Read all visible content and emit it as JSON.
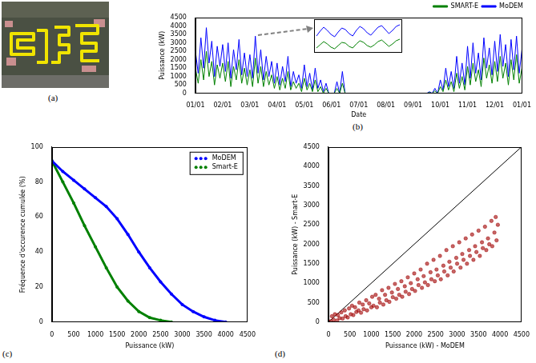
{
  "image_panel": {
    "label": "(a)"
  },
  "chart_data": [
    {
      "panel": "(b)",
      "type": "line",
      "xlabel": "Date",
      "ylabel": "Puissance (kW)",
      "categories": [
        "01/01",
        null,
        null,
        null,
        null,
        null,
        null,
        null,
        null,
        null,
        "02/01",
        null,
        null,
        null,
        null,
        null,
        null,
        null,
        null,
        null,
        "03/01",
        null,
        null,
        null,
        null,
        null,
        null,
        null,
        null,
        null,
        "04/01",
        null,
        null,
        null,
        null,
        null,
        null,
        null,
        null,
        null,
        "05/01",
        null,
        null,
        null,
        null,
        null,
        null,
        null,
        null,
        null,
        "06/01",
        null,
        null,
        null,
        null,
        null,
        null,
        null,
        null,
        null,
        "07/01",
        null,
        null,
        null,
        null,
        null,
        null,
        null,
        null,
        null,
        "08/01",
        null,
        null,
        null,
        null,
        null,
        null,
        null,
        null,
        null,
        "09/01",
        null,
        null,
        null,
        null,
        null,
        null,
        null,
        null,
        null,
        "10/01",
        null,
        null,
        null,
        null,
        null,
        null,
        null,
        null,
        null,
        "11/01",
        null,
        null,
        null,
        null,
        null,
        null,
        null,
        null,
        null,
        "12/01",
        null,
        null,
        null,
        null,
        null,
        null,
        null,
        null,
        null,
        "01/01"
      ],
      "series": [
        {
          "name": "MoDEM",
          "color": "#0000ff",
          "values": [
            2500,
            1200,
            3300,
            1500,
            3900,
            1800,
            3100,
            1000,
            2800,
            1600,
            2900,
            1300,
            3000,
            900,
            2600,
            1400,
            3200,
            1100,
            2400,
            1000,
            2300,
            900,
            3400,
            1200,
            2600,
            800,
            2200,
            1000,
            1900,
            600,
            1800,
            500,
            1600,
            700,
            2200,
            400,
            1300,
            600,
            1100,
            300,
            1700,
            400,
            1200,
            200,
            1500,
            300,
            800,
            100,
            600,
            0,
            0,
            0,
            700,
            0,
            1300,
            0,
            0,
            0,
            0,
            0,
            0,
            0,
            0,
            0,
            0,
            0,
            0,
            0,
            0,
            0,
            0,
            0,
            0,
            0,
            0,
            0,
            0,
            0,
            0,
            0,
            0,
            0,
            0,
            0,
            0,
            0,
            100,
            0,
            300,
            0,
            800,
            200,
            1500,
            400,
            1300,
            300,
            2200,
            600,
            1800,
            500,
            2800,
            900,
            3000,
            1200,
            2400,
            800,
            3300,
            1500,
            2700,
            1100,
            3100,
            1300,
            3500,
            1600,
            2900,
            1000,
            3200,
            1400,
            3400,
            1200,
            2600
          ]
        },
        {
          "name": "SMART-E",
          "color": "#008000",
          "values": [
            1500,
            600,
            2000,
            800,
            2500,
            1000,
            1900,
            500,
            1700,
            900,
            1800,
            700,
            1900,
            400,
            1600,
            800,
            2000,
            600,
            1500,
            500,
            1400,
            400,
            2100,
            600,
            1600,
            400,
            1300,
            500,
            1100,
            300,
            1000,
            200,
            900,
            300,
            1300,
            200,
            700,
            300,
            600,
            100,
            900,
            200,
            600,
            100,
            800,
            100,
            400,
            0,
            300,
            0,
            0,
            0,
            300,
            0,
            600,
            0,
            0,
            0,
            0,
            0,
            0,
            0,
            0,
            0,
            0,
            0,
            0,
            0,
            0,
            0,
            0,
            0,
            0,
            0,
            0,
            0,
            0,
            0,
            0,
            0,
            0,
            0,
            0,
            0,
            0,
            0,
            50,
            0,
            150,
            0,
            400,
            100,
            800,
            200,
            700,
            100,
            1200,
            300,
            1000,
            200,
            1600,
            500,
            1800,
            700,
            1400,
            400,
            2100,
            900,
            1700,
            600,
            1900,
            700,
            2200,
            900,
            1800,
            500,
            2000,
            800,
            2300,
            600,
            1500
          ]
        }
      ],
      "ylim": [
        0,
        4500
      ],
      "yticks": [
        0,
        500,
        1000,
        1500,
        2000,
        2500,
        3000,
        3500,
        4000,
        4500
      ],
      "grid": false,
      "legend": "top",
      "inset": {
        "type": "line",
        "tick_labels": false,
        "ylim": [
          400,
          4000
        ],
        "categories": [
          null,
          null,
          null,
          null,
          null,
          null,
          null,
          null,
          null,
          null,
          null,
          null,
          null,
          null,
          null,
          null,
          null,
          null,
          null,
          null,
          null,
          null,
          null,
          null
        ],
        "series": [
          {
            "color": "#0000ff",
            "values": [
              2200,
              2800,
              3300,
              2900,
              2400,
              2100,
              2700,
              3200,
              3000,
              2500,
              2200,
              2900,
              3400,
              3100,
              2600,
              2300,
              2800,
              3300,
              3500,
              3000,
              2500,
              2900,
              3400,
              3600
            ]
          },
          {
            "color": "#008000",
            "values": [
              700,
              1100,
              1500,
              1200,
              800,
              600,
              1000,
              1400,
              1300,
              900,
              700,
              1200,
              1600,
              1400,
              1000,
              800,
              1100,
              1500,
              1700,
              1300,
              900,
              1200,
              1600,
              1800
            ]
          }
        ]
      }
    },
    {
      "panel": "(c)",
      "type": "line",
      "xlabel": "Puissance (kW)",
      "ylabel": "Fréquence d'occurence cumulée (%)",
      "series": [
        {
          "name": "MoDEM",
          "color": "#0000ff",
          "marker": "circle",
          "x": [
            0,
            250,
            500,
            750,
            1000,
            1250,
            1500,
            1750,
            2000,
            2250,
            2500,
            2750,
            3000,
            3250,
            3500,
            3750,
            4000
          ],
          "values": [
            92,
            86,
            81,
            76,
            71,
            66,
            59,
            50,
            40,
            31,
            23,
            16,
            10,
            6,
            3,
            1,
            0
          ]
        },
        {
          "name": "Smart-E",
          "color": "#008000",
          "marker": "circle",
          "x": [
            0,
            250,
            500,
            750,
            1000,
            1250,
            1500,
            1750,
            2000,
            2250,
            2500,
            2750
          ],
          "values": [
            92,
            80,
            68,
            55,
            43,
            31,
            20,
            12,
            6,
            2.5,
            1,
            0
          ]
        }
      ],
      "xlim": [
        0,
        4500
      ],
      "xticks": [
        0,
        500,
        1000,
        1500,
        2000,
        2500,
        3000,
        3500,
        4000,
        4500
      ],
      "ylim": [
        0,
        100
      ],
      "yticks": [
        0,
        20,
        40,
        60,
        80,
        100
      ],
      "grid": false,
      "legend": "upper right"
    },
    {
      "panel": "(d)",
      "type": "scatter",
      "xlabel": "Puissance (kW) - MoDEM",
      "ylabel": "Puissance (kW) - Smart-E",
      "series": [
        {
          "color": "#a00000",
          "marker": "circle",
          "x": [
            0,
            50,
            80,
            120,
            150,
            200,
            220,
            260,
            300,
            330,
            380,
            400,
            450,
            480,
            520,
            550,
            580,
            620,
            650,
            700,
            720,
            760,
            800,
            820,
            880,
            900,
            950,
            1000,
            1020,
            1050,
            1100,
            1130,
            1180,
            1200,
            1250,
            1280,
            1320,
            1350,
            1400,
            1420,
            1480,
            1500,
            1550,
            1580,
            1620,
            1650,
            1700,
            1720,
            1780,
            1800,
            1850,
            1880,
            1920,
            1950,
            2000,
            2020,
            2080,
            2100,
            2150,
            2180,
            2220,
            2250,
            2300,
            2320,
            2380,
            2400,
            2450,
            2480,
            2520,
            2550,
            2600,
            2620,
            2680,
            2700,
            2750,
            2780,
            2820,
            2850,
            2900,
            2920,
            2980,
            3000,
            3050,
            3080,
            3120,
            3150,
            3200,
            3230,
            3280,
            3300,
            3350,
            3380,
            3420,
            3450,
            3500,
            3530,
            3580,
            3600,
            3650,
            3680,
            3720,
            3750,
            3800,
            3820,
            3870,
            3900,
            3920,
            3950
          ],
          "values": [
            0,
            20,
            150,
            60,
            200,
            40,
            180,
            100,
            250,
            90,
            300,
            150,
            120,
            350,
            200,
            420,
            180,
            380,
            260,
            300,
            500,
            240,
            450,
            330,
            560,
            300,
            480,
            380,
            650,
            420,
            700,
            380,
            600,
            500,
            820,
            450,
            700,
            560,
            880,
            520,
            760,
            640,
            980,
            600,
            850,
            700,
            1050,
            650,
            920,
            780,
            1150,
            720,
            1000,
            850,
            1250,
            800,
            1100,
            950,
            1350,
            880,
            1180,
            1020,
            1500,
            950,
            1280,
            1100,
            1600,
            1050,
            1350,
            1200,
            1700,
            1100,
            1450,
            1300,
            1850,
            1200,
            1550,
            1400,
            1950,
            1300,
            1650,
            1500,
            2050,
            1400,
            1750,
            1600,
            2150,
            1500,
            1850,
            1700,
            2250,
            1600,
            1950,
            1800,
            2350,
            1700,
            2050,
            1900,
            2450,
            1850,
            2150,
            2000,
            2600,
            1950,
            2300,
            2700,
            2100,
            2500
          ]
        },
        {
          "type": "line",
          "color": "#000000",
          "x": [
            0,
            4500
          ],
          "values": [
            0,
            4500
          ]
        }
      ],
      "xlim": [
        0,
        4500
      ],
      "xticks": [
        0,
        500,
        1000,
        1500,
        2000,
        2500,
        3000,
        3500,
        4000,
        4500
      ],
      "ylim": [
        0,
        4500
      ],
      "yticks": [
        0,
        500,
        1000,
        1500,
        2000,
        2500,
        3000,
        3500,
        4000,
        4500
      ],
      "grid": false
    }
  ]
}
